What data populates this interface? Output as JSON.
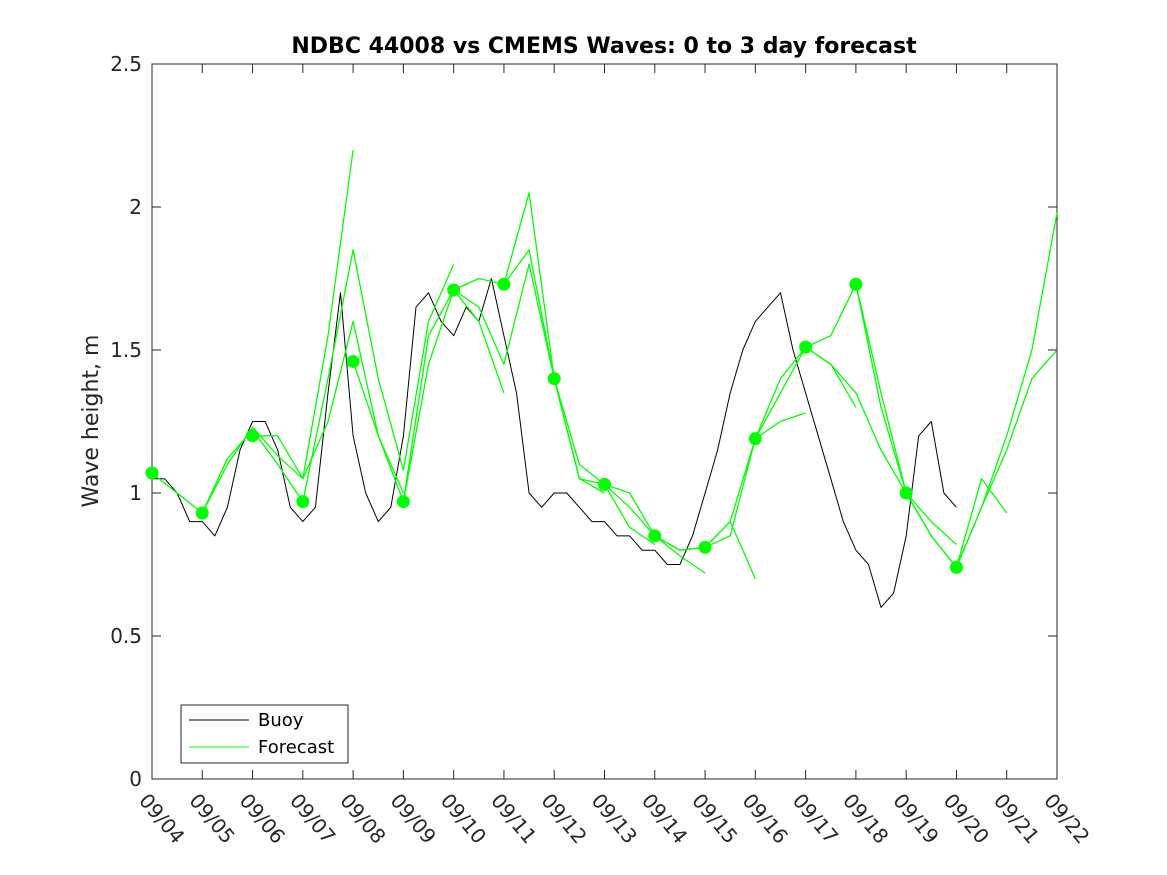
{
  "chart_data": {
    "type": "line",
    "title": "NDBC 44008 vs CMEMS Waves: 0 to 3 day forecast",
    "xlabel": "",
    "ylabel": "Wave height, m",
    "xlim": [
      0,
      18
    ],
    "ylim": [
      0,
      2.5
    ],
    "x_tick_labels": [
      "09/04",
      "09/05",
      "09/06",
      "09/07",
      "09/08",
      "09/09",
      "09/10",
      "09/11",
      "09/12",
      "09/13",
      "09/14",
      "09/15",
      "09/16",
      "09/17",
      "09/18",
      "09/19",
      "09/20",
      "09/21",
      "09/22"
    ],
    "y_ticks": [
      0,
      0.5,
      1,
      1.5,
      2,
      2.5
    ],
    "y_tick_labels": [
      "0",
      "0.5",
      "1",
      "1.5",
      "2",
      "2.5"
    ],
    "grid": false,
    "legend": {
      "position": "bottom-left",
      "entries": [
        "Buoy",
        "Forecast"
      ]
    },
    "colors": {
      "buoy": "#000000",
      "forecast": "#00ff00"
    },
    "series": [
      {
        "name": "Buoy",
        "x": [
          0,
          0.25,
          0.5,
          0.75,
          1,
          1.25,
          1.5,
          1.75,
          2,
          2.25,
          2.5,
          2.75,
          3,
          3.25,
          3.5,
          3.75,
          4,
          4.25,
          4.5,
          4.75,
          5,
          5.25,
          5.5,
          5.75,
          6,
          6.25,
          6.5,
          6.75,
          7,
          7.25,
          7.5,
          7.75,
          8,
          8.25,
          8.5,
          8.75,
          9,
          9.25,
          9.5,
          9.75,
          10,
          10.25,
          10.5,
          10.75,
          11,
          11.25,
          11.5,
          11.75,
          12,
          12.25,
          12.5,
          12.75,
          13,
          13.25,
          13.5,
          13.75,
          14,
          14.25,
          14.5,
          14.75,
          15,
          15.25,
          15.5,
          15.75,
          16,
          16.25,
          16.5,
          16.75,
          17,
          17.25,
          17.5
        ],
        "values": [
          1.05,
          1.05,
          1.0,
          0.9,
          0.9,
          0.85,
          0.95,
          1.15,
          1.25,
          1.25,
          1.15,
          0.95,
          0.9,
          0.95,
          1.35,
          1.7,
          1.2,
          1.0,
          0.9,
          0.95,
          1.2,
          1.65,
          1.7,
          1.6,
          1.55,
          1.65,
          1.6,
          1.75,
          1.55,
          1.35,
          1.0,
          0.95,
          1.0,
          1.0,
          0.95,
          0.9,
          0.9,
          0.85,
          0.85,
          0.8,
          0.8,
          0.75,
          0.75,
          0.85,
          1.0,
          1.15,
          1.35,
          1.5,
          1.6,
          1.65,
          1.7,
          1.5,
          1.35,
          1.2,
          1.05,
          0.9,
          0.8,
          0.75,
          0.6,
          0.65,
          0.85,
          1.2,
          1.25,
          1.0,
          0.95,
          null,
          null,
          null,
          null,
          null,
          null
        ]
      },
      {
        "name": "Forecast",
        "x": [
          0,
          0.5,
          1,
          1.5,
          2,
          2.5,
          3
        ],
        "values": [
          1.07,
          1.0,
          0.93,
          1.12,
          1.22,
          1.1,
          0.97
        ]
      },
      {
        "name": "Forecast",
        "x": [
          1,
          1.5,
          2,
          2.5,
          3,
          3.5,
          4
        ],
        "values": [
          0.93,
          1.1,
          1.23,
          1.13,
          1.05,
          1.55,
          2.2
        ]
      },
      {
        "name": "Forecast",
        "x": [
          2,
          2.5,
          3,
          3.5,
          4,
          4.5,
          5
        ],
        "values": [
          1.2,
          1.2,
          1.05,
          1.25,
          1.6,
          1.2,
          1.0
        ]
      },
      {
        "name": "Forecast",
        "x": [
          3,
          3.5,
          4,
          4.5,
          5,
          5.5,
          6
        ],
        "values": [
          0.97,
          1.4,
          1.85,
          1.4,
          1.08,
          1.6,
          1.8
        ]
      },
      {
        "name": "Forecast",
        "x": [
          4,
          4.5,
          5,
          5.5,
          6,
          6.5,
          7
        ],
        "values": [
          1.46,
          1.2,
          0.97,
          1.45,
          1.71,
          1.6,
          1.35
        ]
      },
      {
        "name": "Forecast",
        "x": [
          5,
          5.5,
          6,
          6.5,
          7,
          7.5,
          8
        ],
        "values": [
          0.97,
          1.55,
          1.71,
          1.65,
          1.45,
          1.8,
          1.4
        ]
      },
      {
        "name": "Forecast",
        "x": [
          6,
          6.5,
          7,
          7.5,
          8,
          8.5,
          9
        ],
        "values": [
          1.71,
          1.75,
          1.73,
          1.85,
          1.4,
          1.05,
          1.0
        ]
      },
      {
        "name": "Forecast",
        "x": [
          7,
          7.5,
          8,
          8.5,
          9,
          9.5,
          10
        ],
        "values": [
          1.73,
          2.05,
          1.4,
          1.05,
          1.03,
          0.88,
          0.82
        ]
      },
      {
        "name": "Forecast",
        "x": [
          8,
          8.5,
          9,
          9.5,
          10,
          10.5,
          11
        ],
        "values": [
          1.4,
          1.1,
          1.03,
          1.0,
          0.85,
          0.78,
          0.72
        ]
      },
      {
        "name": "Forecast",
        "x": [
          9,
          9.5,
          10,
          10.5,
          11,
          11.5,
          12
        ],
        "values": [
          1.03,
          0.95,
          0.85,
          0.8,
          0.81,
          0.9,
          0.7
        ]
      },
      {
        "name": "Forecast",
        "x": [
          10,
          10.5,
          11,
          11.5,
          12,
          12.5,
          13
        ],
        "values": [
          0.85,
          0.8,
          0.81,
          0.85,
          1.19,
          1.25,
          1.28
        ]
      },
      {
        "name": "Forecast",
        "x": [
          11,
          11.5,
          12,
          12.5,
          13,
          13.5,
          14
        ],
        "values": [
          0.81,
          0.9,
          1.19,
          1.4,
          1.51,
          1.45,
          1.3
        ]
      },
      {
        "name": "Forecast",
        "x": [
          12,
          12.5,
          13,
          13.5,
          14,
          14.5,
          15
        ],
        "values": [
          1.19,
          1.35,
          1.51,
          1.55,
          1.73,
          1.3,
          1.0
        ]
      },
      {
        "name": "Forecast",
        "x": [
          13,
          13.5,
          14,
          14.5,
          15,
          15.5,
          16
        ],
        "values": [
          1.51,
          1.45,
          1.35,
          1.15,
          1.0,
          0.9,
          0.82
        ]
      },
      {
        "name": "Forecast",
        "x": [
          14,
          14.5,
          15,
          15.5,
          16,
          16.5,
          17
        ],
        "values": [
          1.73,
          1.35,
          1.0,
          0.85,
          0.74,
          1.05,
          0.93
        ]
      },
      {
        "name": "Forecast",
        "x": [
          15,
          15.5,
          16,
          16.5,
          17,
          17.5,
          18
        ],
        "values": [
          1.0,
          0.85,
          0.74,
          0.95,
          1.15,
          1.4,
          1.5
        ]
      },
      {
        "name": "Forecast",
        "x": [
          16,
          16.5,
          17,
          17.5,
          18
        ],
        "values": [
          0.74,
          0.95,
          1.2,
          1.5,
          1.98
        ]
      }
    ],
    "initial_points": {
      "x": [
        0,
        1,
        2,
        3,
        4,
        5,
        6,
        7,
        8,
        9,
        10,
        11,
        12,
        13,
        14,
        15,
        16
      ],
      "values": [
        1.07,
        0.93,
        1.2,
        0.97,
        1.46,
        0.97,
        1.71,
        1.73,
        1.4,
        1.03,
        0.85,
        0.81,
        1.19,
        1.51,
        1.73,
        1.0,
        0.74
      ]
    }
  }
}
